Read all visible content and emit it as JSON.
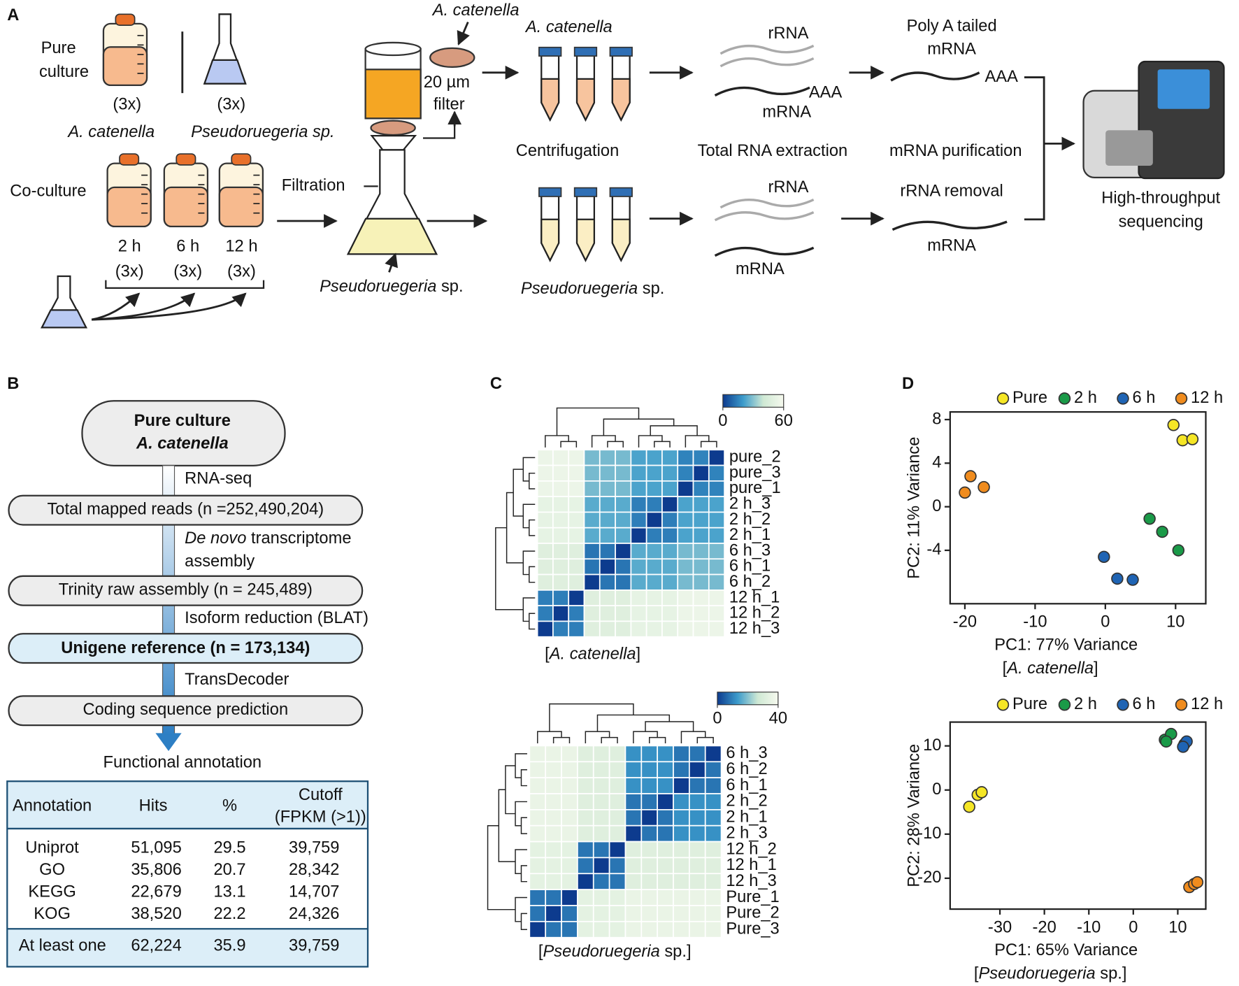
{
  "panel_labels": [
    "A",
    "B",
    "C",
    "D"
  ],
  "panel_a": {
    "texts": [
      "Pure",
      "culture",
      "(3x)",
      "(3x)",
      "A. catenella",
      "Pseudoruegeria sp.",
      "Co-culture",
      "2 h",
      "6 h",
      "12 h",
      "(3x)",
      "(3x)",
      "(3x)",
      "Filtration",
      "A. catenella",
      "20 µm",
      "filter",
      [
        "Pseudoruegeria",
        " sp."
      ],
      "A. catenella",
      "Centrifugation",
      [
        "Pseudoruegeria",
        " sp."
      ],
      "rRNA",
      "AAA",
      "mRNA",
      "Total RNA extraction",
      "rRNA",
      "mRNA",
      "Poly A tailed",
      "mRNA",
      "AAA",
      "mRNA purification",
      "rRNA removal",
      "mRNA",
      "High-throughput",
      "sequencing"
    ]
  },
  "panel_b": {
    "flow": [
      "Pure culture",
      "A. catenella",
      "RNA-seq",
      "Total mapped reads (n =252,490,204)",
      [
        "De novo",
        " transcriptome"
      ],
      "assembly",
      "Trinity raw assembly (n = 245,489)",
      "Isoform reduction (BLAT)",
      "Unigene reference (n = 173,134)",
      "TransDecoder",
      "Coding sequence prediction",
      "Functional annotation"
    ],
    "table": {
      "header": [
        "Annotation",
        "Hits",
        "%",
        "Cutoff",
        "(FPKM (>1))"
      ],
      "rows": [
        [
          "Uniprot",
          "51,095",
          "29.5",
          "39,759"
        ],
        [
          "GO",
          "35,806",
          "20.7",
          "28,342"
        ],
        [
          "KEGG",
          "22,679",
          "13.1",
          "14,707"
        ],
        [
          "KOG",
          "38,520",
          "22.2",
          "24,326"
        ]
      ],
      "footer": [
        "At least one",
        "62,224",
        "35.9",
        "39,759"
      ]
    }
  },
  "chart_data": [
    {
      "type": "heatmap",
      "subtitle": [
        "[",
        "A. catenella",
        "]"
      ],
      "rows": [
        "pure_2",
        "pure_3",
        "pure_1",
        "2 h_3",
        "2 h_2",
        "2 h_1",
        "6 h_3",
        "6 h_1",
        "6 h_2",
        "12 h_1",
        "12 h_2",
        "12 h_3"
      ],
      "zlim": [
        0,
        60
      ],
      "zticks": [
        0,
        60
      ],
      "colorscale": [
        "#0d3b8e",
        "#3c9bcb",
        "#cfe9d4",
        "#f6f9ee"
      ],
      "values": [
        [
          55,
          55,
          55,
          28,
          28,
          28,
          22,
          22,
          22,
          15,
          15,
          0
        ],
        [
          55,
          55,
          55,
          28,
          28,
          28,
          22,
          22,
          22,
          15,
          0,
          15
        ],
        [
          55,
          55,
          55,
          28,
          28,
          28,
          22,
          22,
          22,
          0,
          15,
          15
        ],
        [
          52,
          52,
          52,
          24,
          24,
          24,
          14,
          14,
          0,
          22,
          22,
          22
        ],
        [
          52,
          52,
          52,
          24,
          24,
          24,
          14,
          0,
          14,
          22,
          22,
          22
        ],
        [
          52,
          52,
          52,
          24,
          24,
          24,
          0,
          14,
          14,
          22,
          22,
          22
        ],
        [
          48,
          48,
          48,
          12,
          12,
          0,
          24,
          24,
          24,
          28,
          28,
          28
        ],
        [
          48,
          48,
          48,
          12,
          0,
          12,
          24,
          24,
          24,
          28,
          28,
          28
        ],
        [
          48,
          48,
          48,
          0,
          12,
          12,
          24,
          24,
          24,
          28,
          28,
          28
        ],
        [
          14,
          14,
          0,
          48,
          48,
          48,
          52,
          52,
          52,
          55,
          55,
          55
        ],
        [
          14,
          0,
          14,
          48,
          48,
          48,
          52,
          52,
          52,
          55,
          55,
          55
        ],
        [
          0,
          14,
          14,
          48,
          48,
          48,
          52,
          52,
          52,
          55,
          55,
          55
        ]
      ]
    },
    {
      "type": "heatmap",
      "subtitle": [
        "[",
        "Pseudoruegeria",
        " sp.]"
      ],
      "rows": [
        "6 h_3",
        "6 h_2",
        "6 h_1",
        "2 h_2",
        "2 h_1",
        "2 h_3",
        "12 h_2",
        "12 h_1",
        "12 h_3",
        "Pure_1",
        "Pure_2",
        "Pure_3"
      ],
      "zlim": [
        0,
        40
      ],
      "zticks": [
        0,
        40
      ],
      "colorscale": [
        "#0d3b8e",
        "#3c9bcb",
        "#cfe9d4",
        "#f6f9ee"
      ],
      "values": [
        [
          36,
          36,
          36,
          32,
          32,
          32,
          12,
          12,
          12,
          8,
          8,
          0
        ],
        [
          36,
          36,
          36,
          32,
          32,
          32,
          12,
          12,
          12,
          8,
          0,
          8
        ],
        [
          36,
          36,
          36,
          32,
          32,
          32,
          12,
          12,
          12,
          0,
          8,
          8
        ],
        [
          36,
          36,
          36,
          32,
          32,
          32,
          8,
          8,
          0,
          12,
          12,
          12
        ],
        [
          36,
          36,
          36,
          32,
          32,
          32,
          8,
          0,
          8,
          12,
          12,
          12
        ],
        [
          36,
          36,
          36,
          32,
          32,
          32,
          0,
          8,
          8,
          12,
          12,
          12
        ],
        [
          34,
          34,
          34,
          8,
          8,
          0,
          32,
          32,
          32,
          32,
          32,
          32
        ],
        [
          34,
          34,
          34,
          8,
          0,
          8,
          32,
          32,
          32,
          32,
          32,
          32
        ],
        [
          34,
          34,
          34,
          0,
          8,
          8,
          32,
          32,
          32,
          32,
          32,
          32
        ],
        [
          8,
          8,
          0,
          34,
          34,
          34,
          36,
          36,
          36,
          36,
          36,
          36
        ],
        [
          8,
          0,
          8,
          34,
          34,
          34,
          36,
          36,
          36,
          36,
          36,
          36
        ],
        [
          0,
          8,
          8,
          34,
          34,
          34,
          36,
          36,
          36,
          36,
          36,
          36
        ]
      ]
    },
    {
      "type": "scatter",
      "xlabel": "PC1: 77% Variance",
      "ylabel": "PC2: 11% Variance",
      "subtitle": [
        "[",
        "A. catenella",
        "]"
      ],
      "xlim": [
        -22.1,
        14.3
      ],
      "ylim": [
        -8.9,
        8.7
      ],
      "xticks": [
        -20,
        -10,
        0,
        10
      ],
      "yticks": [
        8,
        4,
        0,
        -4
      ],
      "series": [
        {
          "name": "Pure",
          "color": "#f5e625",
          "x": [
            9.7,
            11,
            12.4
          ],
          "values": [
            7.5,
            6.1,
            6.2
          ]
        },
        {
          "name": "2 h",
          "color": "#1a9a48",
          "x": [
            6.3,
            8.1,
            10.4
          ],
          "values": [
            -1.1,
            -2.3,
            -4
          ]
        },
        {
          "name": "6 h",
          "color": "#1f64b4",
          "x": [
            -0.2,
            1.7,
            3.9
          ],
          "values": [
            -4.6,
            -6.6,
            -6.7
          ]
        },
        {
          "name": "12 h",
          "color": "#f08c1e",
          "x": [
            -20,
            -19.2,
            -17.3
          ],
          "values": [
            1.3,
            2.8,
            1.8
          ]
        }
      ]
    },
    {
      "type": "scatter",
      "xlabel": "PC1: 65% Variance",
      "ylabel": "PC2: 28% Variance",
      "subtitle": [
        "[",
        "Pseudoruegeria",
        " sp.]"
      ],
      "xlim": [
        -41.2,
        16.3
      ],
      "ylim": [
        -27,
        15.4
      ],
      "xticks": [
        -30,
        -20,
        -10,
        0,
        10
      ],
      "yticks": [
        10,
        0,
        -10,
        -20
      ],
      "series": [
        {
          "name": "Pure",
          "color": "#f5e625",
          "x": [
            -36.9,
            -35,
            -34.1
          ],
          "values": [
            -3.8,
            -1.1,
            -0.5
          ]
        },
        {
          "name": "2 h",
          "color": "#1a9a48",
          "x": [
            7.1,
            8.5,
            7.4
          ],
          "values": [
            11.4,
            12.7,
            11
          ]
        },
        {
          "name": "6 h",
          "color": "#1f64b4",
          "x": [
            11.5,
            12,
            11.2
          ],
          "values": [
            10.4,
            11,
            9.8
          ]
        },
        {
          "name": "12 h",
          "color": "#f08c1e",
          "x": [
            12.6,
            13.7,
            14.4
          ],
          "values": [
            -22,
            -21.3,
            -20.9
          ]
        }
      ]
    }
  ]
}
